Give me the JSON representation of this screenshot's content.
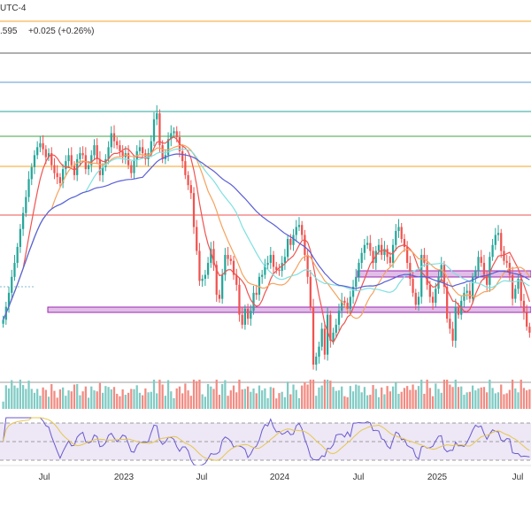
{
  "header": {
    "timezone": "UTC-4",
    "quote": ".595",
    "change": "+0.025 (+0.26%)"
  },
  "colors": {
    "up": "#26a69a",
    "down": "#ef5350",
    "vol_up": "#80cbc4",
    "vol_down": "#f28b82",
    "ma_fast": "#ef5350",
    "ma_mid": "#f5a25d",
    "ma_slow": "#7fe0e0",
    "ma_long": "#5b5fd6",
    "zone_fill": "#e1bee7",
    "zone_border": "#9c27b0",
    "rsi_line": "#6a5acd",
    "rsi_ma": "#e6c74d",
    "rsi_band": "#ede7f6",
    "grid": "#eeeeee",
    "axis_text": "#333333"
  },
  "chart_data": {
    "type": "candlestick",
    "title": "",
    "x_tick_labels": [
      "Jul",
      "2023",
      "Jul",
      "2024",
      "Jul",
      "2025",
      "Jul"
    ],
    "price_levels": [
      {
        "color": "#f5a623"
      },
      {
        "color": "#616161"
      },
      {
        "color": "#5b9bd5"
      },
      {
        "color": "#26a69a"
      },
      {
        "color": "#43a047"
      },
      {
        "color": "#f5a623"
      },
      {
        "color": "#ef5350"
      }
    ],
    "support_zones": [
      {
        "name": "zone-upper"
      },
      {
        "name": "zone-lower"
      }
    ],
    "series": [
      {
        "name": "candles"
      },
      {
        "name": "ma-fast"
      },
      {
        "name": "ma-mid"
      },
      {
        "name": "ma-slow"
      },
      {
        "name": "ma-long"
      },
      {
        "name": "volume"
      },
      {
        "name": "rsi"
      },
      {
        "name": "rsi-ma"
      }
    ],
    "closes": [
      205,
      218,
      232,
      248,
      262,
      278,
      296,
      312,
      328,
      346,
      358,
      370,
      378,
      382,
      376,
      368,
      372,
      360,
      352,
      348,
      342,
      356,
      364,
      370,
      360,
      350,
      366,
      372,
      370,
      356,
      360,
      370,
      380,
      366,
      350,
      358,
      366,
      378,
      392,
      384,
      380,
      374,
      368,
      372,
      360,
      352,
      365,
      374,
      378,
      372,
      366,
      372,
      384,
      406,
      412,
      380,
      366,
      370,
      386,
      392,
      394,
      388,
      374,
      364,
      350,
      340,
      332,
      298,
      274,
      244,
      246,
      250,
      262,
      276,
      260,
      230,
      226,
      250,
      270,
      266,
      264,
      250,
      240,
      210,
      200,
      216,
      206,
      214,
      232,
      230,
      248,
      250,
      260,
      262,
      270,
      258,
      255,
      254,
      262,
      268,
      286,
      280,
      290,
      298,
      300,
      290,
      270,
      248,
      218,
      160,
      168,
      178,
      196,
      170,
      210,
      184,
      192,
      200,
      214,
      224,
      222,
      216,
      228,
      238,
      248,
      262,
      272,
      280,
      282,
      274,
      262,
      274,
      280,
      270,
      276,
      268,
      262,
      280,
      294,
      298,
      286,
      278,
      262,
      246,
      232,
      220,
      228,
      270,
      262,
      240,
      228,
      222,
      236,
      248,
      260,
      238,
      206,
      196,
      184,
      218,
      210,
      224,
      232,
      234,
      226,
      248,
      254,
      268,
      262,
      250,
      240,
      268,
      280,
      290,
      292,
      274,
      264,
      262,
      250,
      226,
      236,
      246,
      224,
      212,
      198,
      192
    ]
  }
}
